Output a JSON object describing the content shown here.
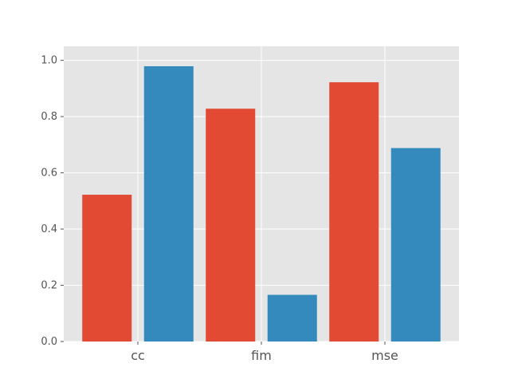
{
  "chart_data": {
    "type": "bar",
    "categories": [
      "cc",
      "fim",
      "mse"
    ],
    "series": [
      {
        "values": [
          0.522,
          0.828,
          0.922
        ],
        "color": "#E24A33"
      },
      {
        "values": [
          0.979,
          0.166,
          0.688
        ],
        "color": "#348ABD"
      }
    ],
    "yticks": [
      "0.0",
      "0.2",
      "0.4",
      "0.6",
      "0.8",
      "1.0"
    ],
    "ylim": [
      0,
      1.0
    ],
    "grid": true,
    "style": "ggplot"
  }
}
